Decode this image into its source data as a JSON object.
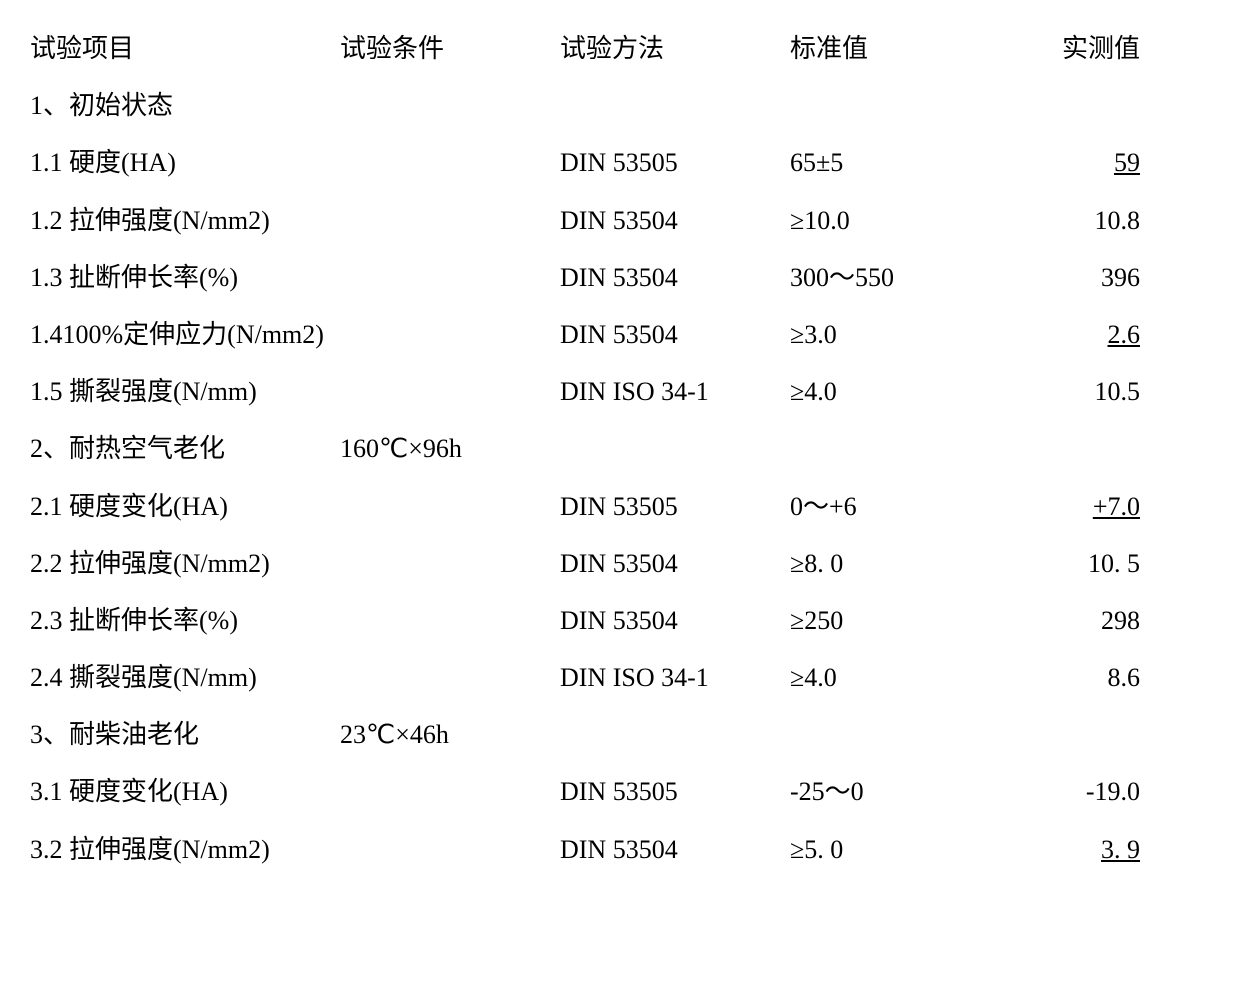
{
  "headers": {
    "item": "试验项目",
    "condition": "试验条件",
    "method": "试验方法",
    "standard": "标准值",
    "measured": "实测值"
  },
  "sections": [
    {
      "title": "1、初始状态",
      "condition": "",
      "rows": [
        {
          "item": "1.1 硬度(HA)",
          "cond": "",
          "method": "DIN 53505",
          "std": "65±5",
          "val": "59",
          "underline": true
        },
        {
          "item": "1.2 拉伸强度(N/mm2)",
          "cond": "",
          "method": "DIN 53504",
          "std": "≥10.0",
          "val": "10.8",
          "underline": false
        },
        {
          "item": "1.3 扯断伸长率(%)",
          "cond": "",
          "method": "DIN 53504",
          "std": "300～550",
          "val": "396",
          "underline": false
        },
        {
          "item": "1.4100%定伸应力(N/mm2)",
          "cond": "",
          "method": "DIN 53504",
          "std": "≥3.0",
          "val": "2.6",
          "underline": true
        },
        {
          "item": "1.5 撕裂强度(N/mm)",
          "cond": "",
          "method": "DIN ISO 34-1",
          "std": "≥4.0",
          "val": "10.5",
          "underline": false
        }
      ]
    },
    {
      "title": "2、耐热空气老化",
      "condition": "160℃×96h",
      "rows": [
        {
          "item": "2.1 硬度变化(HA)",
          "cond": "",
          "method": "DIN 53505",
          "std": "0～+6",
          "val": "+7.0",
          "underline": true
        },
        {
          "item": "2.2 拉伸强度(N/mm2)",
          "cond": "",
          "method": "DIN 53504",
          "std": "≥8. 0",
          "val": "10. 5",
          "underline": false
        },
        {
          "item": "2.3 扯断伸长率(%)",
          "cond": "",
          "method": "DIN 53504",
          "std": "≥250",
          "val": "298",
          "underline": false
        },
        {
          "item": "2.4 撕裂强度(N/mm)",
          "cond": "",
          "method": "DIN ISO 34-1",
          "std": "≥4.0",
          "val": "8.6",
          "underline": false
        }
      ]
    },
    {
      "title": "3、耐柴油老化",
      "condition": "23℃×46h",
      "rows": [
        {
          "item": "3.1 硬度变化(HA)",
          "cond": "",
          "method": "DIN 53505",
          "std": "-25～0",
          "val": "-19.0",
          "underline": false
        },
        {
          "item": "3.2 拉伸强度(N/mm2)",
          "cond": "",
          "method": "DIN 53504",
          "std": "≥5. 0",
          "val": "3. 9",
          "underline": true
        }
      ]
    }
  ]
}
